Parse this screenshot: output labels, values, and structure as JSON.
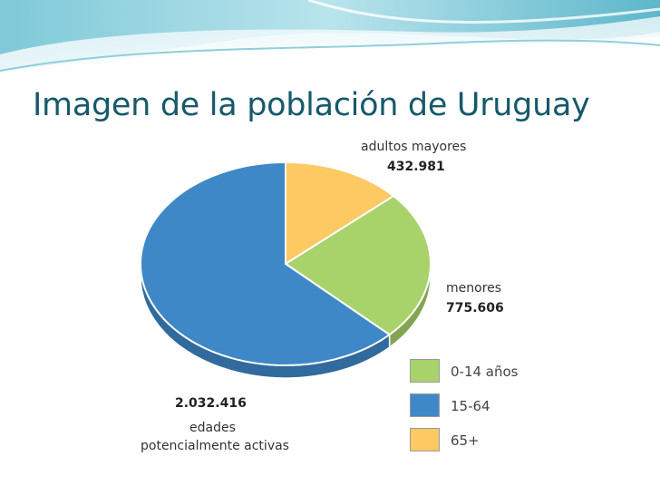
{
  "slide": {
    "title": "Imagen de la población de Uruguay"
  },
  "chart_data": {
    "type": "pie",
    "title": "",
    "slices": [
      {
        "name": "adultos mayores",
        "value": 432981,
        "value_label": "432.981",
        "color": "#fcc962"
      },
      {
        "name": "menores",
        "value": 775606,
        "value_label": "775.606",
        "color": "#a8d26a"
      },
      {
        "name": "edades potencialmente activas",
        "name_line1": "edades",
        "name_line2": "potencialmente activas",
        "value": 2032416,
        "value_label": "2.032.416",
        "color": "#3f88c8"
      }
    ],
    "legend": [
      {
        "label": "0-14 años",
        "color": "#a8d26a"
      },
      {
        "label": "15-64",
        "color": "#3f88c8"
      },
      {
        "label": "65+",
        "color": "#fcc962"
      }
    ],
    "legend_position": "bottom-right",
    "style": "3d"
  }
}
